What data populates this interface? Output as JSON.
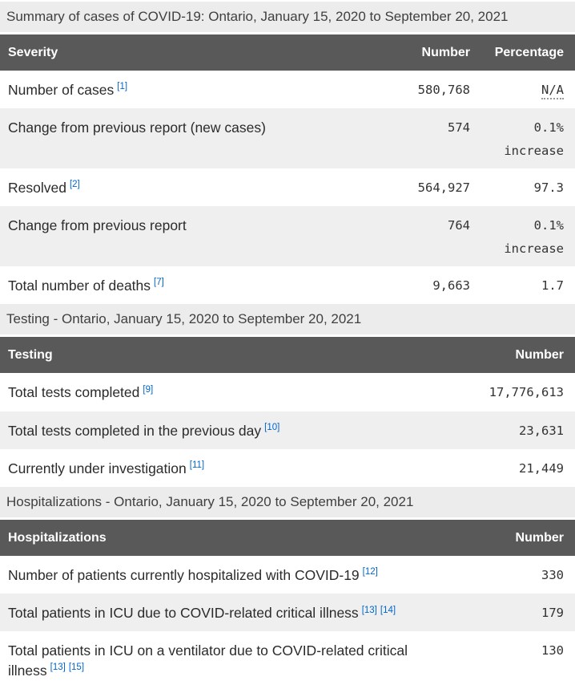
{
  "colors": {
    "header_bg": "#595959",
    "header_text": "#ffffff",
    "caption_bg": "#ececec",
    "row_alt_bg": "#efefef",
    "link_blue": "#0066cc",
    "body_text": "#2b2b2b"
  },
  "tables": [
    {
      "caption": "Summary of cases of COVID-19: Ontario, January 15, 2020 to September 20, 2021",
      "columns": [
        "Severity",
        "Number",
        "Percentage"
      ],
      "rows": [
        {
          "label": "Number of cases",
          "refs": [
            "[1]"
          ],
          "number": "580,768",
          "percentage": "N/A",
          "na": true
        },
        {
          "label": "Change from previous report (new cases)",
          "refs": [],
          "number": "574",
          "percentage": "0.1%",
          "percentage_suffix": "increase"
        },
        {
          "label": "Resolved",
          "refs": [
            "[2]"
          ],
          "number": "564,927",
          "percentage": "97.3"
        },
        {
          "label": "Change from previous report",
          "refs": [],
          "number": "764",
          "percentage": "0.1%",
          "percentage_suffix": "increase"
        },
        {
          "label": "Total number of deaths",
          "refs": [
            "[7]"
          ],
          "number": "9,663",
          "percentage": "1.7"
        }
      ]
    },
    {
      "caption": "Testing - Ontario, January 15, 2020 to September 20, 2021",
      "columns": [
        "Testing",
        "Number"
      ],
      "rows": [
        {
          "label": "Total tests completed",
          "refs": [
            "[9]"
          ],
          "number": "17,776,613"
        },
        {
          "label": "Total tests completed in the previous day",
          "refs": [
            "[10]"
          ],
          "number": "23,631"
        },
        {
          "label": "Currently under investigation",
          "refs": [
            "[11]"
          ],
          "number": "21,449"
        }
      ]
    },
    {
      "caption": "Hospitalizations - Ontario, January 15, 2020 to September 20, 2021",
      "columns": [
        "Hospitalizations",
        "Number"
      ],
      "rows": [
        {
          "label": "Number of patients currently hospitalized with COVID-19",
          "refs": [
            "[12]"
          ],
          "number": "330"
        },
        {
          "label": "Total patients in ICU due to COVID-related critical illness",
          "refs": [
            "[13]",
            "[14]"
          ],
          "number": "179"
        },
        {
          "label": "Total patients in ICU on a ventilator due to COVID-related critical illness",
          "refs": [
            "[13]",
            "[15]"
          ],
          "number": "130"
        }
      ]
    }
  ]
}
